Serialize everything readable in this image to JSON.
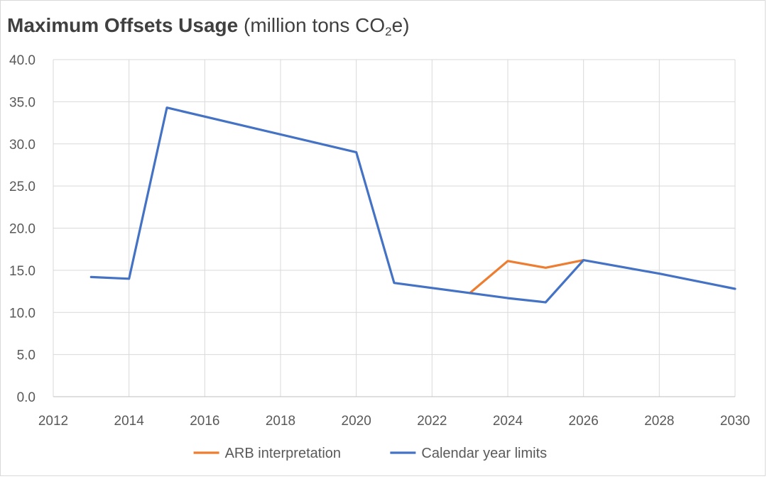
{
  "chart_data": {
    "type": "line",
    "title": "Maximum Offsets Usage",
    "subtitle_prefix": "(million tons CO",
    "subtitle_sub": "2",
    "subtitle_suffix": "e)",
    "xlabel": "",
    "ylabel": "",
    "xlim": [
      2012,
      2030
    ],
    "ylim": [
      0,
      40
    ],
    "x_ticks": [
      "2012",
      "2014",
      "2016",
      "2018",
      "2020",
      "2022",
      "2024",
      "2026",
      "2028",
      "2030"
    ],
    "y_ticks": [
      "0.0",
      "5.0",
      "10.0",
      "15.0",
      "20.0",
      "25.0",
      "30.0",
      "35.0",
      "40.0"
    ],
    "grid": "vertical and horizontal",
    "legend_position": "bottom",
    "series": [
      {
        "name": "ARB interpretation",
        "color": "#ED7D31",
        "x": [
          2023,
          2024,
          2025,
          2026
        ],
        "y": [
          12.3,
          16.1,
          15.3,
          16.2
        ]
      },
      {
        "name": "Calendar year limits",
        "color": "#4472C4",
        "x": [
          2013,
          2014,
          2015,
          2020,
          2021,
          2023,
          2024,
          2025,
          2026,
          2028,
          2030
        ],
        "y": [
          14.2,
          14.0,
          34.3,
          29.0,
          13.5,
          12.3,
          11.7,
          11.2,
          16.2,
          14.6,
          12.8
        ]
      }
    ]
  }
}
